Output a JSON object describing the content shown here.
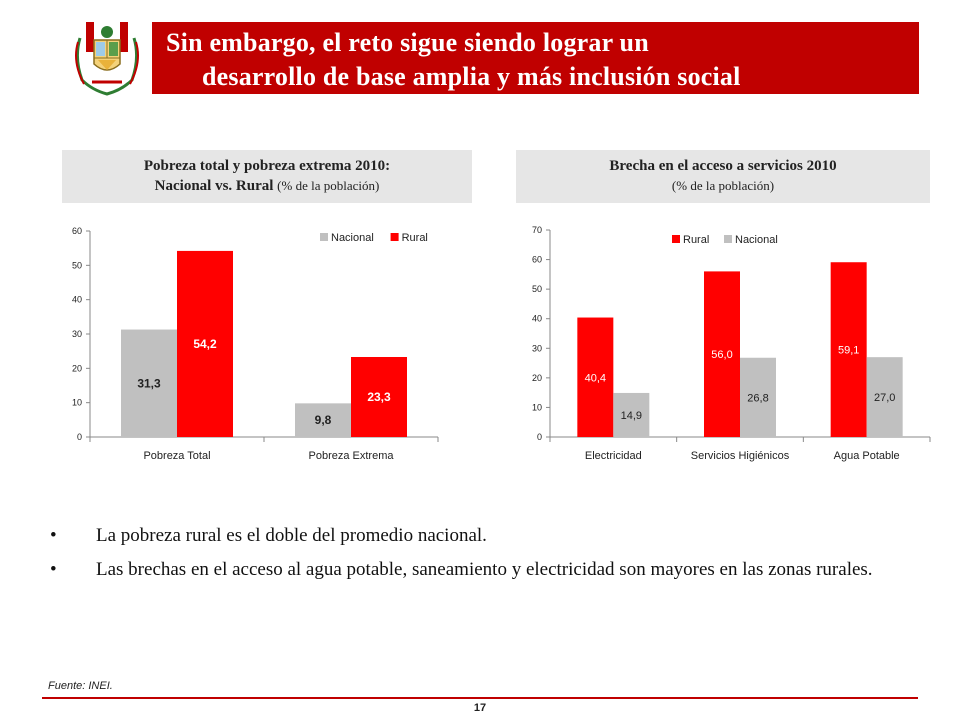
{
  "header": {
    "title_line1": "Sin embargo, el reto sigue siendo lograr un",
    "title_line2": "desarrollo de base amplia y más inclusión social",
    "bar_color": "#c00000",
    "emblem_icon": "peru-coat-of-arms-icon"
  },
  "panel_left": {
    "title_line1": "Pobreza total y pobreza extrema 2010:",
    "title_line2_bold": "Nacional vs. Rural",
    "title_line2_note": "(% de la población)"
  },
  "panel_right": {
    "title_line1": "Brecha en el acceso a servicios 2010",
    "title_line2_note": "(% de la población)"
  },
  "chart_data": [
    {
      "type": "bar",
      "title": "",
      "categories": [
        "Pobreza Total",
        "Pobreza Extrema"
      ],
      "series": [
        {
          "name": "Nacional",
          "color": "#c0c0c0",
          "values": [
            31.3,
            9.8
          ],
          "labels": [
            "31,3",
            "9,8"
          ]
        },
        {
          "name": "Rural",
          "color": "#ff0000",
          "values": [
            54.2,
            23.3
          ],
          "labels": [
            "54,2",
            "23,3"
          ]
        }
      ],
      "ylim": [
        0,
        60
      ],
      "yticks": [
        "0",
        "10",
        "20",
        "30",
        "40",
        "50",
        "60"
      ],
      "legend": "top-right",
      "grid": false
    },
    {
      "type": "bar",
      "title": "",
      "categories": [
        "Electricidad",
        "Servicios Higiénicos",
        "Agua Potable"
      ],
      "series": [
        {
          "name": "Rural",
          "color": "#ff0000",
          "values": [
            40.4,
            56.0,
            59.1
          ],
          "labels": [
            "40,4",
            "56,0",
            "59,1"
          ]
        },
        {
          "name": "Nacional",
          "color": "#c0c0c0",
          "values": [
            14.9,
            26.8,
            27.0
          ],
          "labels": [
            "14,9",
            "26,8",
            "27,0"
          ]
        }
      ],
      "ylim": [
        0,
        70
      ],
      "yticks": [
        "0",
        "10",
        "20",
        "30",
        "40",
        "50",
        "60",
        "70"
      ],
      "legend": "top-center",
      "grid": false
    }
  ],
  "bullets": [
    "La pobreza rural es el doble del promedio nacional.",
    "Las brechas en el acceso al agua potable, saneamiento y electricidad son mayores en las zonas rurales."
  ],
  "bullet_char": "•",
  "source": "Fuente: INEI.",
  "page_number": "17"
}
